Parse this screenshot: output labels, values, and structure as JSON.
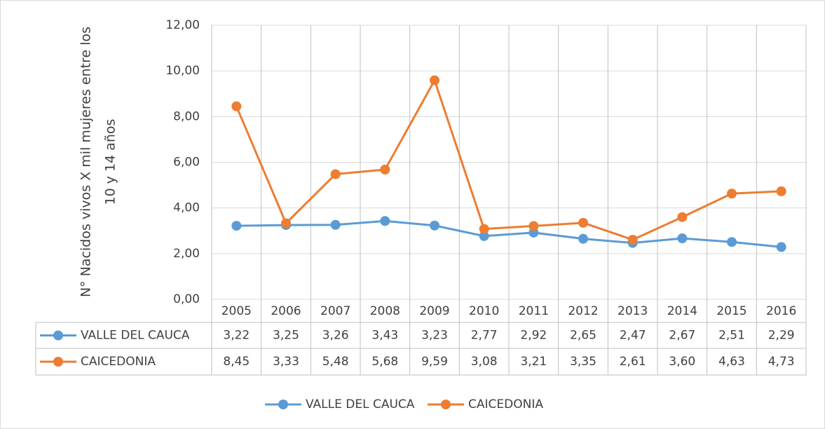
{
  "chart_data": {
    "type": "line",
    "ylabel": [
      "N° Nacidos vivos X mil mujeres entre los",
      "10 y 14 años"
    ],
    "categories": [
      "2005",
      "2006",
      "2007",
      "2008",
      "2009",
      "2010",
      "2011",
      "2012",
      "2013",
      "2014",
      "2015",
      "2016"
    ],
    "series": [
      {
        "name": "VALLE DEL CAUCA",
        "color": "#5b9bd5",
        "values": [
          3.22,
          3.25,
          3.26,
          3.43,
          3.23,
          2.77,
          2.92,
          2.65,
          2.47,
          2.67,
          2.51,
          2.29
        ],
        "value_labels": [
          "3,22",
          "3,25",
          "3,26",
          "3,43",
          "3,23",
          "2,77",
          "2,92",
          "2,65",
          "2,47",
          "2,67",
          "2,51",
          "2,29"
        ]
      },
      {
        "name": "CAICEDONIA",
        "color": "#ed7d31",
        "values": [
          8.45,
          3.33,
          5.48,
          5.68,
          9.59,
          3.08,
          3.21,
          3.35,
          2.61,
          3.6,
          4.63,
          4.73
        ],
        "value_labels": [
          "8,45",
          "3,33",
          "5,48",
          "5,68",
          "9,59",
          "3,08",
          "3,21",
          "3,35",
          "2,61",
          "3,60",
          "4,63",
          "4,73"
        ]
      }
    ],
    "ylim": [
      0,
      12
    ],
    "yticks": [
      {
        "value": 0,
        "label": "0,00"
      },
      {
        "value": 2,
        "label": "2,00"
      },
      {
        "value": 4,
        "label": "4,00"
      },
      {
        "value": 6,
        "label": "6,00"
      },
      {
        "value": 8,
        "label": "8,00"
      },
      {
        "value": 10,
        "label": "10,00"
      },
      {
        "value": 12,
        "label": "12,00"
      }
    ],
    "grid": true,
    "legend": "bottom",
    "data_table": true
  }
}
